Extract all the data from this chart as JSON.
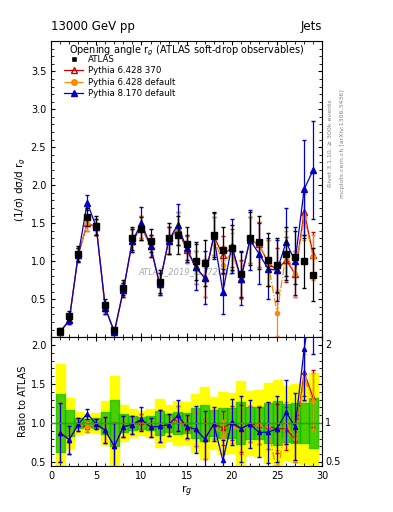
{
  "title_left": "13000 GeV pp",
  "title_right": "Jets",
  "plot_title": "Opening angle r$_g$ (ATLAS soft-drop observables)",
  "xlabel": "r$_g$",
  "ylabel_main": "(1/σ) dσ/d r$_g$",
  "ylabel_ratio": "Ratio to ATLAS",
  "right_label_top": "Rivet 3.1.10, ≥ 300k events",
  "right_label_bot": "mcplots.cern.ch [arXiv:1306.3436]",
  "watermark": "ATLAS_2019_I1772062",
  "xlim": [
    0,
    30
  ],
  "ylim_main": [
    0,
    3.9
  ],
  "ylim_ratio": [
    0.45,
    2.1
  ],
  "atlas_x": [
    1,
    2,
    3,
    4,
    5,
    6,
    7,
    8,
    9,
    10,
    11,
    12,
    13,
    14,
    15,
    16,
    17,
    18,
    19,
    20,
    21,
    22,
    23,
    24,
    25,
    26,
    27,
    28,
    29
  ],
  "atlas_y": [
    0.08,
    0.28,
    1.1,
    1.58,
    1.47,
    0.42,
    0.1,
    0.65,
    1.3,
    1.43,
    1.27,
    0.73,
    1.3,
    1.35,
    1.23,
    1.0,
    0.98,
    1.35,
    1.15,
    1.18,
    0.83,
    1.3,
    1.25,
    1.02,
    0.95,
    1.1,
    1.05,
    1.0,
    0.82
  ],
  "atlas_yerr": [
    0.04,
    0.06,
    0.1,
    0.12,
    0.12,
    0.08,
    0.04,
    0.1,
    0.15,
    0.15,
    0.15,
    0.15,
    0.2,
    0.25,
    0.22,
    0.25,
    0.3,
    0.3,
    0.3,
    0.3,
    0.3,
    0.35,
    0.35,
    0.35,
    0.35,
    0.35,
    0.35,
    0.35,
    0.35
  ],
  "py6370_x": [
    1,
    2,
    3,
    4,
    5,
    6,
    7,
    8,
    9,
    10,
    11,
    12,
    13,
    14,
    15,
    16,
    17,
    18,
    19,
    20,
    21,
    22,
    23,
    24,
    25,
    26,
    27,
    28,
    29
  ],
  "py6370_y": [
    0.07,
    0.22,
    1.08,
    1.5,
    1.45,
    0.38,
    0.07,
    0.62,
    1.27,
    1.45,
    1.2,
    0.7,
    1.27,
    1.43,
    1.15,
    0.92,
    0.78,
    1.33,
    1.08,
    1.18,
    0.77,
    1.28,
    1.22,
    0.98,
    0.88,
    1.02,
    0.83,
    1.65,
    1.08
  ],
  "py6370_yerr": [
    0.03,
    0.05,
    0.09,
    0.1,
    0.1,
    0.07,
    0.03,
    0.09,
    0.15,
    0.15,
    0.15,
    0.15,
    0.18,
    0.22,
    0.18,
    0.22,
    0.25,
    0.25,
    0.25,
    0.25,
    0.25,
    0.3,
    0.3,
    0.3,
    0.3,
    0.3,
    0.3,
    0.3,
    0.3
  ],
  "py6def_x": [
    1,
    2,
    3,
    4,
    5,
    6,
    7,
    8,
    9,
    10,
    11,
    12,
    13,
    14,
    15,
    16,
    17,
    18,
    19,
    20,
    21,
    22,
    23,
    24,
    25,
    26,
    27,
    28,
    29
  ],
  "py6def_y": [
    0.07,
    0.22,
    1.08,
    1.5,
    1.45,
    0.38,
    0.07,
    0.62,
    1.27,
    1.45,
    1.2,
    0.7,
    1.27,
    1.43,
    1.15,
    0.92,
    0.78,
    1.33,
    0.95,
    1.12,
    0.75,
    1.28,
    1.22,
    0.98,
    0.32,
    1.1,
    0.83,
    1.58,
    1.05
  ],
  "py6def_yerr": [
    0.03,
    0.05,
    0.09,
    0.1,
    0.1,
    0.07,
    0.03,
    0.09,
    0.15,
    0.15,
    0.15,
    0.15,
    0.18,
    0.22,
    0.18,
    0.22,
    0.25,
    0.25,
    0.25,
    0.25,
    0.25,
    0.3,
    0.3,
    0.3,
    0.3,
    0.3,
    0.3,
    0.3,
    0.3
  ],
  "py8def_x": [
    1,
    2,
    3,
    4,
    5,
    6,
    7,
    8,
    9,
    10,
    11,
    12,
    13,
    14,
    15,
    16,
    17,
    18,
    19,
    20,
    21,
    22,
    23,
    24,
    25,
    26,
    27,
    28,
    29
  ],
  "py8def_y": [
    0.07,
    0.22,
    1.08,
    1.77,
    1.45,
    0.38,
    0.07,
    0.62,
    1.27,
    1.5,
    1.2,
    0.7,
    1.27,
    1.48,
    1.17,
    0.92,
    0.78,
    1.33,
    0.6,
    1.2,
    0.77,
    1.28,
    1.1,
    0.9,
    0.88,
    1.25,
    1.0,
    1.95,
    2.2
  ],
  "py8def_yerr": [
    0.03,
    0.05,
    0.09,
    0.1,
    0.1,
    0.07,
    0.03,
    0.09,
    0.15,
    0.22,
    0.15,
    0.15,
    0.18,
    0.27,
    0.18,
    0.3,
    0.35,
    0.3,
    0.3,
    0.35,
    0.35,
    0.4,
    0.4,
    0.4,
    0.4,
    0.45,
    0.45,
    0.65,
    0.65
  ],
  "atlas_color": "#000000",
  "py6370_color": "#cc0000",
  "py6def_color": "#ff8800",
  "py8def_color": "#0000cc",
  "band_yellow": "#ffff00",
  "band_green": "#00bb00",
  "yticks_main": [
    0,
    0.5,
    1.0,
    1.5,
    2.0,
    2.5,
    3.0,
    3.5
  ],
  "yticks_ratio": [
    0.5,
    1.0,
    1.5,
    2.0
  ],
  "xticks": [
    0,
    5,
    10,
    15,
    20,
    25,
    30
  ],
  "band_yellow_lo_fac": 0.25,
  "band_yellow_hi_fac": 0.25,
  "band_green_lo_fac": 0.12,
  "band_green_hi_fac": 0.12
}
